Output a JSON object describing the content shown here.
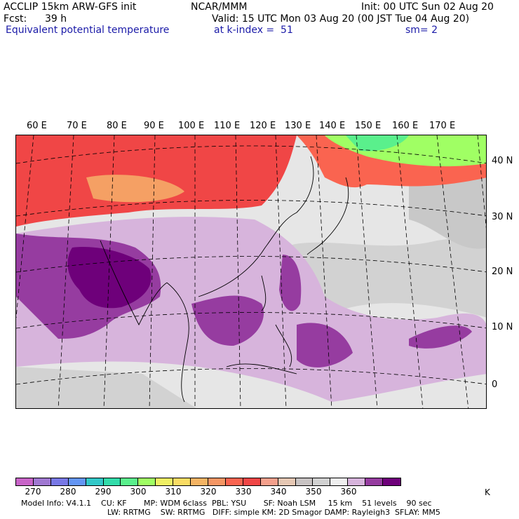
{
  "header": {
    "model": "ACCLIP 15km ARW-GFS init",
    "org": "NCAR/MMM",
    "init": "Init: 00 UTC Sun 02 Aug 20",
    "fcst_label": "Fcst:",
    "fcst_value": "39 h",
    "valid": "Valid: 15 UTC Mon 03 Aug 20 (00 JST Tue 04 Aug 20)",
    "field": "Equivalent potential temperature",
    "level": "at k-index =  51",
    "smoothing": "sm= 2"
  },
  "map": {
    "lon_labels": [
      "60 E",
      "70 E",
      "80 E",
      "90 E",
      "100 E",
      "110 E",
      "120 E",
      "130 E",
      "140 E",
      "150 E",
      "160 E",
      "170 E"
    ],
    "lat_labels": [
      "40 N",
      "30 N",
      "20 N",
      "10 N",
      "0"
    ],
    "colors": {
      "high_theta_e": "#fa5a50",
      "very_high": "#f03c3c",
      "low_purple": "#6e007a",
      "mid_purple": "#963ca0",
      "light_purple": "#d7b4dc",
      "gray": "#c8c8c8",
      "light_gray": "#e6e6e6",
      "green": "#a0ff64",
      "orange": "#f5a064"
    }
  },
  "colorbar": {
    "colors": [
      "#c864c8",
      "#a078d2",
      "#7878e6",
      "#6496f5",
      "#32c8c8",
      "#32dcaa",
      "#5af08c",
      "#a0ff64",
      "#f0f064",
      "#fadc64",
      "#f5b464",
      "#f59664",
      "#fa6450",
      "#f04646",
      "#f5a08c",
      "#e6c8b4",
      "#c8c3c3",
      "#d2d2d2",
      "#f0f0f0",
      "#d7b4dc",
      "#963ca0",
      "#6e007a"
    ],
    "ticks": [
      "270",
      "280",
      "290",
      "300",
      "310",
      "320",
      "330",
      "340",
      "350",
      "360"
    ],
    "unit": "K"
  },
  "footer": {
    "line1": "Model Info: V4.1.1    CU: KF       MP: WDM 6class  PBL: YSU       SF: Noah LSM     15 km    51 levels    90 sec",
    "line2": "LW: RRTMG    SW: RRTMG   DIFF: simple KM: 2D Smagor DAMP: Rayleigh3  SFLAY: MM5"
  }
}
